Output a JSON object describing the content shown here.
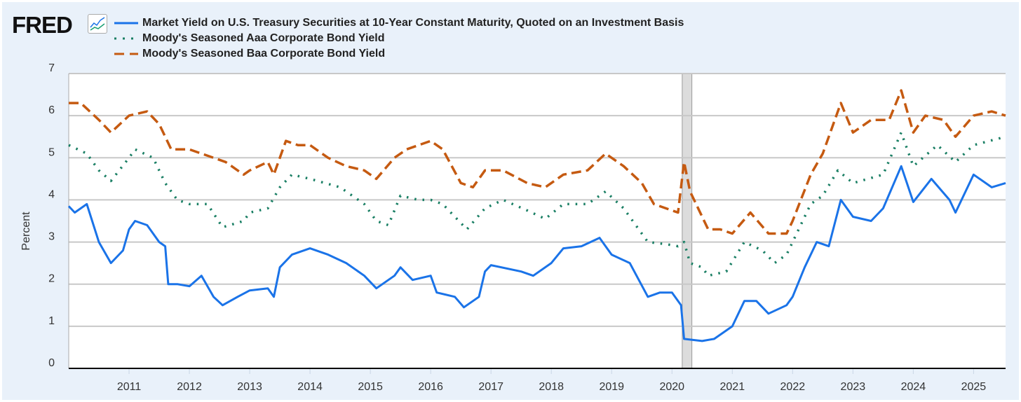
{
  "brand": {
    "logo_text": "FRED"
  },
  "chart_data": {
    "type": "line",
    "title": "",
    "xlabel": "",
    "ylabel": "Percent",
    "xlim": [
      2010.0,
      2025.53
    ],
    "ylim": [
      0,
      7
    ],
    "yticks": [
      0,
      1,
      2,
      3,
      4,
      5,
      6,
      7
    ],
    "xticks": [
      "2011",
      "2012",
      "2013",
      "2014",
      "2015",
      "2016",
      "2017",
      "2018",
      "2019",
      "2020",
      "2021",
      "2022",
      "2023",
      "2024",
      "2025"
    ],
    "grid": true,
    "legend_position": "top-left",
    "recession": [
      2020.17,
      2020.33
    ],
    "series": [
      {
        "name": "Market Yield on U.S. Treasury Securities at 10-Year Constant Maturity, Quoted on an Investment Basis",
        "color": "#1a73e8",
        "style": "solid",
        "x": [
          2010.0,
          2010.1,
          2010.3,
          2010.5,
          2010.7,
          2010.9,
          2011.0,
          2011.1,
          2011.3,
          2011.5,
          2011.6,
          2011.65,
          2011.8,
          2012.0,
          2012.2,
          2012.4,
          2012.55,
          2012.8,
          2013.0,
          2013.3,
          2013.4,
          2013.5,
          2013.7,
          2013.9,
          2014.0,
          2014.3,
          2014.6,
          2014.9,
          2015.1,
          2015.4,
          2015.5,
          2015.7,
          2016.0,
          2016.1,
          2016.4,
          2016.55,
          2016.8,
          2016.9,
          2017.0,
          2017.5,
          2017.7,
          2018.0,
          2018.2,
          2018.5,
          2018.8,
          2019.0,
          2019.3,
          2019.6,
          2019.8,
          2020.0,
          2020.15,
          2020.2,
          2020.5,
          2020.7,
          2021.0,
          2021.2,
          2021.4,
          2021.6,
          2021.9,
          2022.0,
          2022.2,
          2022.4,
          2022.6,
          2022.8,
          2023.0,
          2023.3,
          2023.5,
          2023.8,
          2024.0,
          2024.3,
          2024.6,
          2024.7,
          2025.0,
          2025.3,
          2025.53
        ],
        "values": [
          3.85,
          3.7,
          3.9,
          3.0,
          2.5,
          2.8,
          3.3,
          3.5,
          3.4,
          3.0,
          2.9,
          2.0,
          2.0,
          1.95,
          2.2,
          1.7,
          1.5,
          1.7,
          1.85,
          1.9,
          1.7,
          2.4,
          2.7,
          2.8,
          2.85,
          2.7,
          2.5,
          2.2,
          1.9,
          2.2,
          2.4,
          2.1,
          2.2,
          1.8,
          1.7,
          1.45,
          1.7,
          2.3,
          2.45,
          2.3,
          2.2,
          2.5,
          2.85,
          2.9,
          3.1,
          2.7,
          2.5,
          1.7,
          1.8,
          1.8,
          1.5,
          0.7,
          0.65,
          0.7,
          1.0,
          1.6,
          1.6,
          1.3,
          1.5,
          1.7,
          2.4,
          3.0,
          2.9,
          4.0,
          3.6,
          3.5,
          3.8,
          4.8,
          3.95,
          4.5,
          4.0,
          3.7,
          4.6,
          4.3,
          4.4
        ]
      },
      {
        "name": "Moody's Seasoned Aaa Corporate Bond Yield",
        "color": "#1a7f64",
        "style": "dotted",
        "x": [
          2010.0,
          2010.3,
          2010.5,
          2010.7,
          2011.0,
          2011.1,
          2011.4,
          2011.6,
          2011.8,
          2012.0,
          2012.3,
          2012.55,
          2012.9,
          2013.0,
          2013.3,
          2013.5,
          2013.7,
          2014.0,
          2014.5,
          2014.9,
          2015.1,
          2015.3,
          2015.5,
          2015.8,
          2016.0,
          2016.2,
          2016.6,
          2016.9,
          2017.2,
          2017.6,
          2017.9,
          2018.2,
          2018.6,
          2018.9,
          2019.2,
          2019.6,
          2019.9,
          2020.1,
          2020.2,
          2020.3,
          2020.5,
          2020.6,
          2020.9,
          2021.2,
          2021.5,
          2021.7,
          2021.9,
          2022.0,
          2022.3,
          2022.5,
          2022.75,
          2023.0,
          2023.5,
          2023.8,
          2024.0,
          2024.4,
          2024.7,
          2025.0,
          2025.53
        ],
        "values": [
          5.3,
          5.1,
          4.7,
          4.45,
          5.0,
          5.2,
          5.0,
          4.4,
          4.0,
          3.9,
          3.9,
          3.35,
          3.5,
          3.7,
          3.8,
          4.3,
          4.6,
          4.5,
          4.3,
          3.9,
          3.5,
          3.4,
          4.1,
          4.0,
          4.0,
          3.9,
          3.3,
          3.8,
          4.0,
          3.75,
          3.55,
          3.9,
          3.9,
          4.2,
          3.8,
          3.0,
          2.95,
          2.9,
          3.0,
          2.5,
          2.4,
          2.2,
          2.3,
          3.0,
          2.8,
          2.5,
          2.7,
          3.0,
          3.9,
          4.1,
          4.7,
          4.4,
          4.6,
          5.6,
          4.8,
          5.3,
          4.9,
          5.3,
          5.5
        ]
      },
      {
        "name": "Moody's Seasoned Baa Corporate Bond Yield",
        "color": "#c55a11",
        "style": "dashed",
        "x": [
          2010.0,
          2010.2,
          2010.5,
          2010.7,
          2011.0,
          2011.3,
          2011.5,
          2011.7,
          2012.0,
          2012.4,
          2012.6,
          2012.9,
          2013.0,
          2013.3,
          2013.4,
          2013.6,
          2013.8,
          2014.0,
          2014.3,
          2014.6,
          2014.9,
          2015.1,
          2015.4,
          2015.6,
          2016.0,
          2016.2,
          2016.5,
          2016.7,
          2016.9,
          2017.2,
          2017.6,
          2017.9,
          2018.2,
          2018.6,
          2018.9,
          2019.2,
          2019.5,
          2019.7,
          2020.1,
          2020.2,
          2020.3,
          2020.6,
          2020.8,
          2021.0,
          2021.3,
          2021.6,
          2021.9,
          2022.0,
          2022.3,
          2022.5,
          2022.8,
          2023.0,
          2023.3,
          2023.6,
          2023.8,
          2024.0,
          2024.2,
          2024.5,
          2024.7,
          2025.0,
          2025.3,
          2025.53
        ],
        "values": [
          6.3,
          6.3,
          5.9,
          5.6,
          6.0,
          6.1,
          5.8,
          5.2,
          5.2,
          5.0,
          4.9,
          4.6,
          4.7,
          4.9,
          4.6,
          5.4,
          5.3,
          5.3,
          5.0,
          4.8,
          4.7,
          4.5,
          5.0,
          5.2,
          5.4,
          5.2,
          4.4,
          4.3,
          4.7,
          4.7,
          4.4,
          4.3,
          4.6,
          4.7,
          5.1,
          4.8,
          4.4,
          3.9,
          3.7,
          4.9,
          4.2,
          3.3,
          3.3,
          3.2,
          3.7,
          3.2,
          3.2,
          3.5,
          4.6,
          5.1,
          6.3,
          5.6,
          5.9,
          5.9,
          6.6,
          5.6,
          6.0,
          5.9,
          5.5,
          6.0,
          6.1,
          6.0
        ]
      }
    ]
  }
}
